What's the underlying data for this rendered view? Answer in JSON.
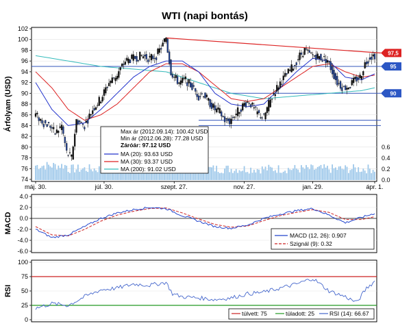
{
  "title": "WTI (napi bontás)",
  "colors": {
    "price": "#1f3f8f",
    "ma20": "#2233cc",
    "ma30": "#dd2222",
    "ma200": "#33bbbb",
    "volume": "#9ec8ea",
    "trend_resistance": "#dd2222",
    "support": "#3355bb",
    "macd": "#2244cc",
    "signal": "#cc2222",
    "rsi": "#4466cc",
    "overbought": "#cc2222",
    "oversold": "#229922"
  },
  "chart_data": [
    {
      "type": "line",
      "title": "WTI (napi bontás)",
      "ylabel": "Árfolyam (USD)",
      "ylim": [
        74,
        102
      ],
      "yticks": [
        "74",
        "76",
        "78",
        "80",
        "82",
        "84",
        "86",
        "88",
        "90",
        "92",
        "94",
        "96",
        "98",
        "100",
        "102"
      ],
      "xticks": [
        "máj. 30.",
        "júl. 30.",
        "szept. 27.",
        "nov. 27.",
        "jan. 29.",
        "ápr. 1."
      ],
      "volume_axis": {
        "ylim": [
          0,
          0.6
        ],
        "ticks": [
          "0.0",
          "0.2",
          "0.4",
          "0.6"
        ]
      },
      "price_series_knots": [
        [
          0,
          86
        ],
        [
          5,
          84.5
        ],
        [
          9,
          84
        ],
        [
          12,
          82.5
        ],
        [
          16,
          84
        ],
        [
          19,
          79
        ],
        [
          22,
          78
        ],
        [
          25,
          85
        ],
        [
          30,
          84
        ],
        [
          35,
          87
        ],
        [
          40,
          89
        ],
        [
          45,
          92
        ],
        [
          50,
          93.5
        ],
        [
          55,
          96
        ],
        [
          60,
          96.5
        ],
        [
          65,
          97
        ],
        [
          70,
          96.5
        ],
        [
          74,
          97
        ],
        [
          78,
          99
        ],
        [
          80,
          100.42
        ],
        [
          81,
          98
        ],
        [
          83,
          94
        ],
        [
          85,
          93
        ],
        [
          88,
          92
        ],
        [
          92,
          92.5
        ],
        [
          95,
          91.5
        ],
        [
          100,
          89.5
        ],
        [
          103,
          90
        ],
        [
          106,
          88.5
        ],
        [
          110,
          87
        ],
        [
          113,
          86.5
        ],
        [
          116,
          85
        ],
        [
          119,
          84.8
        ],
        [
          122,
          86
        ],
        [
          125,
          87
        ],
        [
          128,
          88
        ],
        [
          131,
          88.5
        ],
        [
          134,
          87
        ],
        [
          137,
          86
        ],
        [
          140,
          85.5
        ],
        [
          143,
          88
        ],
        [
          146,
          90
        ],
        [
          150,
          92
        ],
        [
          154,
          93.5
        ],
        [
          158,
          95
        ],
        [
          162,
          97
        ],
        [
          165,
          98
        ],
        [
          168,
          97.2
        ],
        [
          172,
          97
        ],
        [
          176,
          96.5
        ],
        [
          179,
          96.2
        ],
        [
          182,
          94
        ],
        [
          185,
          92
        ],
        [
          189,
          91
        ],
        [
          193,
          91.5
        ],
        [
          196,
          92.5
        ],
        [
          199,
          93
        ],
        [
          202,
          95.5
        ],
        [
          205,
          96.8
        ],
        [
          208,
          97.12
        ]
      ],
      "ma20_knots": [
        [
          0,
          92
        ],
        [
          10,
          87
        ],
        [
          20,
          84
        ],
        [
          30,
          84.5
        ],
        [
          40,
          87
        ],
        [
          50,
          90
        ],
        [
          60,
          93
        ],
        [
          70,
          95
        ],
        [
          80,
          96
        ],
        [
          90,
          96
        ],
        [
          100,
          94
        ],
        [
          110,
          90
        ],
        [
          120,
          88
        ],
        [
          130,
          87.5
        ],
        [
          140,
          88
        ],
        [
          150,
          91
        ],
        [
          160,
          94
        ],
        [
          170,
          96.5
        ],
        [
          180,
          96
        ],
        [
          190,
          93
        ],
        [
          200,
          92.5
        ],
        [
          208,
          93.63
        ]
      ],
      "ma30_knots": [
        [
          0,
          94
        ],
        [
          10,
          91
        ],
        [
          20,
          87
        ],
        [
          30,
          85
        ],
        [
          40,
          86
        ],
        [
          50,
          88
        ],
        [
          60,
          91
        ],
        [
          70,
          94
        ],
        [
          80,
          95.5
        ],
        [
          90,
          95.5
        ],
        [
          100,
          94
        ],
        [
          110,
          91.5
        ],
        [
          120,
          89
        ],
        [
          130,
          88.5
        ],
        [
          140,
          89
        ],
        [
          150,
          91
        ],
        [
          160,
          93
        ],
        [
          170,
          95
        ],
        [
          180,
          95.5
        ],
        [
          190,
          94
        ],
        [
          200,
          93
        ],
        [
          208,
          93.37
        ]
      ],
      "ma200_knots": [
        [
          0,
          97
        ],
        [
          20,
          96
        ],
        [
          40,
          95
        ],
        [
          60,
          94.5
        ],
        [
          80,
          94
        ],
        [
          100,
          92
        ],
        [
          120,
          90
        ],
        [
          140,
          89
        ],
        [
          160,
          89.5
        ],
        [
          180,
          90
        ],
        [
          200,
          90.5
        ],
        [
          208,
          91.02
        ]
      ],
      "trendline": {
        "from": [
          80,
          100.3
        ],
        "to": [
          208,
          97.5
        ]
      },
      "horizontal_levels": [
        95,
        90,
        85,
        84
      ],
      "price_flags": [
        "97,5",
        "95",
        "90"
      ],
      "stats": {
        "max": "Max ár (2012.09.14): 100.42 USD",
        "min": "Min ár (2012.06.28): 77.28 USD",
        "close": "Záróár: 97.12 USD"
      },
      "legend": [
        {
          "name": "MA (20): 93.63 USD",
          "color": "#2233cc"
        },
        {
          "name": "MA (30): 93.37 USD",
          "color": "#dd2222"
        },
        {
          "name": "MA (200): 91.02 USD",
          "color": "#33bbbb"
        }
      ]
    },
    {
      "type": "line",
      "ylabel": "MACD",
      "ylim": [
        -6,
        4
      ],
      "yticks": [
        "-6.0",
        "-4.0",
        "-2.0",
        "0.0",
        "2.0",
        "4.0"
      ],
      "macd_knots": [
        [
          0,
          -2
        ],
        [
          10,
          -3.5
        ],
        [
          20,
          -3
        ],
        [
          30,
          -1.5
        ],
        [
          40,
          0
        ],
        [
          50,
          1
        ],
        [
          60,
          1.6
        ],
        [
          70,
          2
        ],
        [
          80,
          1.8
        ],
        [
          90,
          0.5
        ],
        [
          100,
          -0.5
        ],
        [
          110,
          -1.5
        ],
        [
          120,
          -1.8
        ],
        [
          130,
          -1.2
        ],
        [
          140,
          0
        ],
        [
          150,
          0.8
        ],
        [
          160,
          1.4
        ],
        [
          170,
          1.8
        ],
        [
          180,
          0.6
        ],
        [
          190,
          -0.8
        ],
        [
          200,
          0.2
        ],
        [
          208,
          0.907
        ]
      ],
      "signal_knots": [
        [
          0,
          -1.5
        ],
        [
          10,
          -3
        ],
        [
          20,
          -3.2
        ],
        [
          30,
          -2
        ],
        [
          40,
          -0.5
        ],
        [
          50,
          0.6
        ],
        [
          60,
          1.3
        ],
        [
          70,
          1.8
        ],
        [
          80,
          1.9
        ],
        [
          90,
          1
        ],
        [
          100,
          -0.1
        ],
        [
          110,
          -1.1
        ],
        [
          120,
          -1.6
        ],
        [
          130,
          -1.4
        ],
        [
          140,
          -0.4
        ],
        [
          150,
          0.5
        ],
        [
          160,
          1.1
        ],
        [
          170,
          1.6
        ],
        [
          180,
          1.1
        ],
        [
          190,
          -0.2
        ],
        [
          200,
          -0.2
        ],
        [
          208,
          0.32
        ]
      ],
      "legend": [
        {
          "name": "MACD (12, 26): 0.907",
          "color": "#2244cc"
        },
        {
          "name": "Szignál (9): 0.32",
          "color": "#cc2222"
        }
      ]
    },
    {
      "type": "line",
      "ylabel": "RSI",
      "ylim": [
        0,
        100
      ],
      "yticks": [
        "0",
        "25",
        "50",
        "75",
        "100"
      ],
      "rsi_knots": [
        [
          0,
          20
        ],
        [
          10,
          28
        ],
        [
          20,
          25
        ],
        [
          30,
          40
        ],
        [
          40,
          52
        ],
        [
          50,
          55
        ],
        [
          60,
          62
        ],
        [
          70,
          60
        ],
        [
          80,
          65
        ],
        [
          84,
          45
        ],
        [
          90,
          40
        ],
        [
          100,
          38
        ],
        [
          110,
          35
        ],
        [
          120,
          38
        ],
        [
          130,
          45
        ],
        [
          140,
          48
        ],
        [
          150,
          55
        ],
        [
          160,
          62
        ],
        [
          170,
          72
        ],
        [
          180,
          50
        ],
        [
          190,
          40
        ],
        [
          197,
          30
        ],
        [
          203,
          55
        ],
        [
          208,
          66.67
        ]
      ],
      "levels": {
        "overbought": 75,
        "oversold": 25
      },
      "legend": [
        {
          "name": "túlvett: 75",
          "color": "#cc2222"
        },
        {
          "name": "túladott: 25",
          "color": "#229922"
        },
        {
          "name": "RSI (14): 66.67",
          "color": "#4466cc"
        }
      ]
    }
  ]
}
